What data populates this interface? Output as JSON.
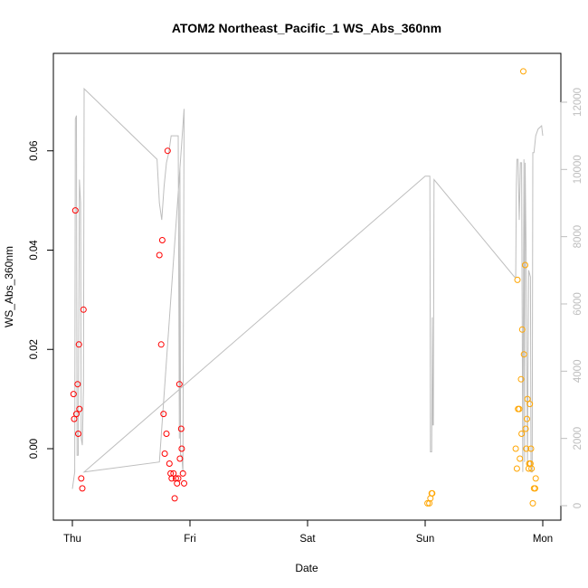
{
  "chart_data": {
    "type": "scatter",
    "title": "ATOM2 Northeast_Pacific_1 WS_Abs_360nm",
    "xlabel": "Date",
    "ylabel": "WS_Abs_360nm",
    "x_unit": "day (Thu = 0)",
    "xlim": [
      0,
      4.0
    ],
    "ylim": [
      -0.0143,
      0.0795
    ],
    "x_ticks": [
      {
        "value": 0,
        "label": "Thu"
      },
      {
        "value": 1,
        "label": "Fri"
      },
      {
        "value": 2,
        "label": "Sat"
      },
      {
        "value": 3,
        "label": "Sun"
      },
      {
        "value": 4,
        "label": "Mon"
      }
    ],
    "y_ticks": [
      {
        "value": 0.0,
        "label": "0.00"
      },
      {
        "value": 0.02,
        "label": "0.02"
      },
      {
        "value": 0.04,
        "label": "0.04"
      },
      {
        "value": 0.06,
        "label": "0.06"
      }
    ],
    "y2_lim": [
      -300,
      13300
    ],
    "y2_ticks": [
      {
        "value": 0,
        "label": "0"
      },
      {
        "value": 2000,
        "label": "2000"
      },
      {
        "value": 4000,
        "label": "4000"
      },
      {
        "value": 6000,
        "label": "6000"
      },
      {
        "value": 8000,
        "label": "8000"
      },
      {
        "value": 10000,
        "label": "10000"
      },
      {
        "value": 12000,
        "label": "12000"
      }
    ],
    "grid": false,
    "legend": "none",
    "series": [
      {
        "color": "#ff0000",
        "marker": "open-circle",
        "points": [
          [
            0.01,
            0.011
          ],
          [
            0.015,
            0.006
          ],
          [
            0.025,
            0.048
          ],
          [
            0.035,
            0.007
          ],
          [
            0.045,
            0.013
          ],
          [
            0.05,
            0.003
          ],
          [
            0.055,
            0.021
          ],
          [
            0.06,
            0.008
          ],
          [
            0.075,
            -0.006
          ],
          [
            0.085,
            -0.008
          ],
          [
            0.095,
            0.028
          ],
          [
            0.74,
            0.039
          ],
          [
            0.755,
            0.021
          ],
          [
            0.765,
            0.042
          ],
          [
            0.775,
            0.007
          ],
          [
            0.785,
            -0.001
          ],
          [
            0.8,
            0.003
          ],
          [
            0.81,
            0.06
          ],
          [
            0.825,
            -0.003
          ],
          [
            0.835,
            -0.005
          ],
          [
            0.845,
            -0.006
          ],
          [
            0.86,
            -0.005
          ],
          [
            0.87,
            -0.01
          ],
          [
            0.88,
            -0.006
          ],
          [
            0.89,
            -0.007
          ],
          [
            0.9,
            -0.006
          ],
          [
            0.91,
            0.013
          ],
          [
            0.915,
            -0.002
          ],
          [
            0.925,
            0.004
          ],
          [
            0.93,
            0.0
          ],
          [
            0.94,
            -0.005
          ],
          [
            0.95,
            -0.007
          ]
        ]
      },
      {
        "color": "#ffa500",
        "marker": "open-circle",
        "points": [
          [
            3.02,
            -0.011
          ],
          [
            3.035,
            -0.011
          ],
          [
            3.045,
            -0.01
          ],
          [
            3.055,
            -0.009
          ],
          [
            3.06,
            -0.009
          ],
          [
            3.77,
            0.0
          ],
          [
            3.78,
            -0.004
          ],
          [
            3.785,
            0.034
          ],
          [
            3.79,
            0.008
          ],
          [
            3.8,
            0.008
          ],
          [
            3.805,
            -0.002
          ],
          [
            3.815,
            0.014
          ],
          [
            3.82,
            0.003
          ],
          [
            3.825,
            0.024
          ],
          [
            3.835,
            0.076
          ],
          [
            3.84,
            0.019
          ],
          [
            3.85,
            0.037
          ],
          [
            3.855,
            0.004
          ],
          [
            3.86,
            0.0
          ],
          [
            3.865,
            0.006
          ],
          [
            3.87,
            0.01
          ],
          [
            3.88,
            -0.004
          ],
          [
            3.885,
            -0.003
          ],
          [
            3.89,
            0.009
          ],
          [
            3.895,
            -0.003
          ],
          [
            3.9,
            0.0
          ],
          [
            3.905,
            -0.004
          ],
          [
            3.915,
            -0.011
          ],
          [
            3.925,
            -0.008
          ],
          [
            3.935,
            -0.008
          ],
          [
            3.94,
            -0.006
          ]
        ]
      },
      {
        "color": "#bebebe",
        "marker": "line",
        "axis": "right",
        "points": [
          [
            0.0,
            500
          ],
          [
            0.02,
            1000
          ],
          [
            0.025,
            11500
          ],
          [
            0.035,
            11600
          ],
          [
            0.04,
            1500
          ],
          [
            0.05,
            1500
          ],
          [
            0.06,
            9700
          ],
          [
            0.07,
            9000
          ],
          [
            0.075,
            2000
          ],
          [
            0.085,
            1800
          ],
          [
            0.095,
            3500
          ],
          [
            0.1,
            12400
          ],
          [
            0.72,
            10300
          ],
          [
            0.74,
            9000
          ],
          [
            0.76,
            8500
          ],
          [
            0.78,
            9500
          ],
          [
            0.8,
            10200
          ],
          [
            0.82,
            10500
          ],
          [
            0.84,
            11000
          ],
          [
            0.86,
            11000
          ],
          [
            0.9,
            11000
          ],
          [
            0.91,
            2000
          ],
          [
            0.915,
            10000
          ],
          [
            0.92,
            1500
          ],
          [
            0.93,
            1500
          ],
          [
            0.94,
            1000
          ],
          [
            0.95,
            11800
          ],
          [
            0.74,
            1300
          ],
          [
            0.1,
            1000
          ],
          [
            3.0,
            9800
          ],
          [
            3.04,
            9800
          ],
          [
            3.045,
            1600
          ],
          [
            3.055,
            1600
          ],
          [
            3.06,
            5600
          ],
          [
            3.065,
            2400
          ],
          [
            3.07,
            2400
          ],
          [
            3.075,
            9700
          ],
          [
            3.76,
            6800
          ],
          [
            3.77,
            6800
          ],
          [
            3.775,
            9500
          ],
          [
            3.78,
            10300
          ],
          [
            3.79,
            10300
          ],
          [
            3.8,
            8500
          ],
          [
            3.81,
            10200
          ],
          [
            3.82,
            10200
          ],
          [
            3.83,
            1000
          ],
          [
            3.84,
            10300
          ],
          [
            3.845,
            1300
          ],
          [
            3.85,
            10200
          ],
          [
            3.86,
            7000
          ],
          [
            3.87,
            1200
          ],
          [
            3.88,
            7000
          ],
          [
            3.895,
            6800
          ],
          [
            3.9,
            1000
          ],
          [
            3.91,
            1000
          ],
          [
            3.915,
            10500
          ],
          [
            3.925,
            10500
          ],
          [
            3.94,
            11000
          ],
          [
            3.96,
            11200
          ],
          [
            3.99,
            11300
          ],
          [
            4.0,
            11000
          ]
        ]
      }
    ]
  }
}
